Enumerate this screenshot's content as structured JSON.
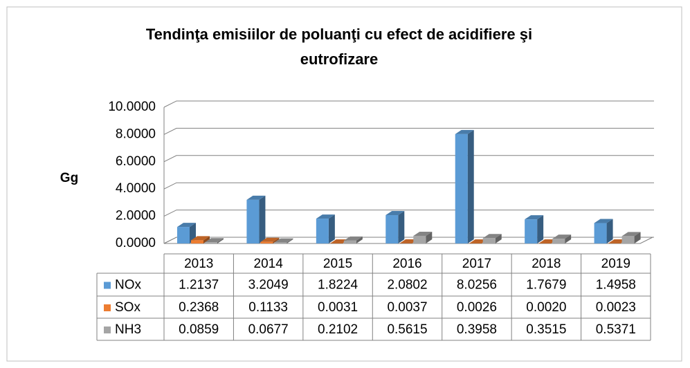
{
  "chart_data": {
    "type": "bar3d",
    "title": "Tendinţa emisiilor de poluanţi cu efect de acidifiere şi eutrofizare",
    "y_label": "Gg",
    "categories": [
      "2013",
      "2014",
      "2015",
      "2016",
      "2017",
      "2018",
      "2019"
    ],
    "series": [
      {
        "name": "NOx",
        "color": "#5b9bd5",
        "values": [
          1.2137,
          3.2049,
          1.8224,
          2.0802,
          8.0256,
          1.7679,
          1.4958
        ],
        "value_labels": [
          "1.2137",
          "3.2049",
          "1.8224",
          "2.0802",
          "8.0256",
          "1.7679",
          "1.4958"
        ]
      },
      {
        "name": "SOx",
        "color": "#ed7d31",
        "values": [
          0.2368,
          0.1133,
          0.0031,
          0.0037,
          0.0026,
          0.002,
          0.0023
        ],
        "value_labels": [
          "0.2368",
          "0.1133",
          "0.0031",
          "0.0037",
          "0.0026",
          "0.0020",
          "0.0023"
        ]
      },
      {
        "name": "NH3",
        "color": "#a5a5a5",
        "values": [
          0.0859,
          0.0677,
          0.2102,
          0.5615,
          0.3958,
          0.3515,
          0.5371
        ],
        "value_labels": [
          "0.0859",
          "0.0677",
          "0.2102",
          "0.5615",
          "0.3958",
          "0.3515",
          "0.5371"
        ]
      }
    ],
    "ylim": [
      0,
      10
    ],
    "yticks": [
      {
        "value": 0,
        "label": "0.0000"
      },
      {
        "value": 2,
        "label": "2.0000"
      },
      {
        "value": 4,
        "label": "4.0000"
      },
      {
        "value": 6,
        "label": "6.0000"
      },
      {
        "value": 8,
        "label": "8.0000"
      },
      {
        "value": 10,
        "label": "10.0000"
      }
    ],
    "grid": true
  }
}
